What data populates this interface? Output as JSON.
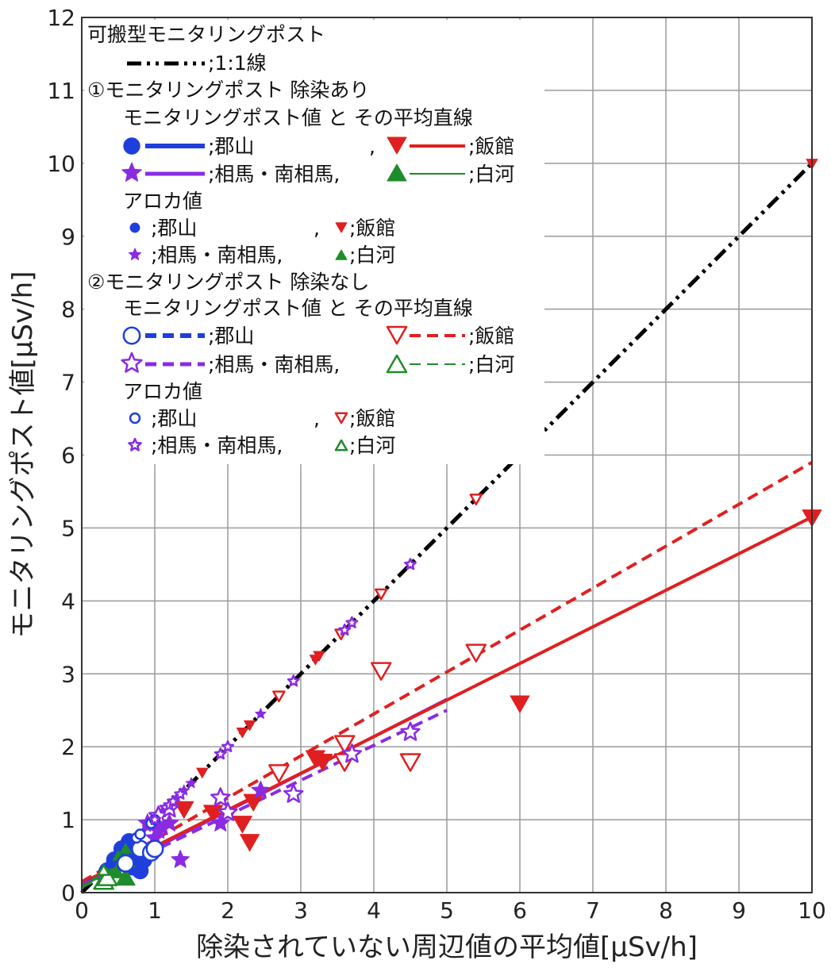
{
  "chart_data": {
    "type": "scatter",
    "title": "",
    "xlabel": "除染されていない周辺値の平均値[μSv/h]",
    "ylabel": "モニタリングポスト値[μSv/h]",
    "xlim": [
      0,
      10
    ],
    "ylim": [
      0,
      12
    ],
    "x_ticks": [
      "0",
      "1",
      "2",
      "3",
      "4",
      "5",
      "6",
      "7",
      "8",
      "9",
      "10"
    ],
    "y_ticks": [
      "0",
      "1",
      "2",
      "3",
      "4",
      "5",
      "6",
      "7",
      "8",
      "9",
      "10",
      "11",
      "12"
    ],
    "grid": true,
    "legend_position": "top-left",
    "colors": {
      "koriyama": "#1f3fdc",
      "iitate": "#e02020",
      "soma": "#8a2be2",
      "shirakawa": "#1e8c2a",
      "reference": "#000000"
    },
    "legend": {
      "header": "可搬型モニタリングポスト",
      "ref_line": ";1:1線",
      "section1": "①モニタリングポスト 除染あり",
      "section2": "②モニタリングポスト 除染なし",
      "mp_title": "モニタリングポスト値 と その平均直線",
      "aloka_title": "アロカ値",
      "koriyama": ";郡山",
      "iitate": ";飯館",
      "soma": ";相馬・南相馬,",
      "shirakawa": ";白河",
      "comma": ","
    },
    "lines": [
      {
        "name": ";1:1線",
        "style": "dashdot",
        "color": "#000000",
        "x": [
          0,
          10
        ],
        "y": [
          0,
          10
        ]
      },
      {
        "name": "郡山",
        "group": "除染あり",
        "style": "solid",
        "color": "#1f3fdc",
        "x": [
          0,
          0.8
        ],
        "y": [
          0.12,
          0.55
        ]
      },
      {
        "name": "相馬・南相馬",
        "group": "除染あり",
        "style": "solid",
        "color": "#8a2be2",
        "x": [
          0,
          5
        ],
        "y": [
          0.1,
          2.65
        ]
      },
      {
        "name": "飯館",
        "group": "除染あり",
        "style": "solid",
        "color": "#e02020",
        "x": [
          0,
          10
        ],
        "y": [
          0.13,
          5.15
        ]
      },
      {
        "name": "白河",
        "group": "除染あり",
        "style": "solid",
        "color": "#1e8c2a",
        "x": [
          0,
          0.7
        ],
        "y": [
          0.1,
          0.45
        ]
      },
      {
        "name": "郡山",
        "group": "除染なし",
        "style": "dashed",
        "color": "#1f3fdc",
        "x": [
          0,
          1.0
        ],
        "y": [
          0.15,
          0.62
        ]
      },
      {
        "name": "相馬・南相馬",
        "group": "除染なし",
        "style": "dashed",
        "color": "#8a2be2",
        "x": [
          0,
          5
        ],
        "y": [
          0.1,
          2.5
        ]
      },
      {
        "name": "飯館",
        "group": "除染なし",
        "style": "dashed",
        "color": "#e02020",
        "x": [
          0,
          10
        ],
        "y": [
          0.15,
          5.9
        ]
      },
      {
        "name": "白河",
        "group": "除染なし",
        "style": "dashed",
        "color": "#1e8c2a",
        "x": [
          0,
          0.7
        ],
        "y": [
          0.08,
          0.4
        ]
      }
    ],
    "series": [
      {
        "name": "郡山",
        "group": "除染あり",
        "kind": "mp",
        "marker": "circle",
        "filled": true,
        "color": "#1f3fdc",
        "points": [
          [
            0.35,
            0.3
          ],
          [
            0.45,
            0.45
          ],
          [
            0.5,
            0.4
          ],
          [
            0.55,
            0.6
          ],
          [
            0.6,
            0.45
          ],
          [
            0.65,
            0.7
          ],
          [
            0.7,
            0.35
          ],
          [
            0.75,
            0.55
          ],
          [
            0.8,
            0.3
          ],
          [
            0.85,
            0.45
          ]
        ]
      },
      {
        "name": "飯館",
        "group": "除染あり",
        "kind": "mp",
        "marker": "triangle-down",
        "filled": true,
        "color": "#e02020",
        "points": [
          [
            1.4,
            1.15
          ],
          [
            1.8,
            1.1
          ],
          [
            2.2,
            0.95
          ],
          [
            2.3,
            0.7
          ],
          [
            2.35,
            1.25
          ],
          [
            3.2,
            1.85
          ],
          [
            3.3,
            1.8
          ],
          [
            6.0,
            2.6
          ],
          [
            10.0,
            5.15
          ]
        ]
      },
      {
        "name": "相馬・南相馬",
        "group": "除染あり",
        "kind": "mp",
        "marker": "star",
        "filled": true,
        "color": "#8a2be2",
        "points": [
          [
            0.9,
            0.95
          ],
          [
            1.0,
            0.75
          ],
          [
            1.05,
            0.85
          ],
          [
            1.1,
            0.9
          ],
          [
            1.2,
            0.95
          ],
          [
            1.35,
            0.45
          ],
          [
            1.9,
            0.95
          ],
          [
            2.45,
            1.4
          ]
        ]
      },
      {
        "name": "白河",
        "group": "除染あり",
        "kind": "mp",
        "marker": "triangle-up",
        "filled": true,
        "color": "#1e8c2a",
        "points": [
          [
            0.3,
            0.15
          ],
          [
            0.45,
            0.3
          ],
          [
            0.6,
            0.2
          ],
          [
            0.6,
            0.45
          ]
        ]
      },
      {
        "name": "郡山",
        "group": "除染あり",
        "kind": "aloka",
        "marker": "circle",
        "filled": true,
        "color": "#1f3fdc",
        "points": [
          [
            0.3,
            0.3
          ],
          [
            0.4,
            0.4
          ],
          [
            0.5,
            0.5
          ],
          [
            0.6,
            0.6
          ],
          [
            0.7,
            0.7
          ],
          [
            0.75,
            0.75
          ]
        ]
      },
      {
        "name": "飯館",
        "group": "除染あり",
        "kind": "aloka",
        "marker": "triangle-down",
        "filled": true,
        "color": "#e02020",
        "points": [
          [
            1.65,
            1.65
          ],
          [
            2.2,
            2.2
          ],
          [
            2.3,
            2.3
          ],
          [
            3.2,
            3.2
          ],
          [
            3.25,
            3.25
          ],
          [
            6.0,
            6.0
          ],
          [
            10.0,
            10.0
          ]
        ]
      },
      {
        "name": "相馬・南相馬",
        "group": "除染あり",
        "kind": "aloka",
        "marker": "star",
        "filled": true,
        "color": "#8a2be2",
        "points": [
          [
            0.9,
            0.9
          ],
          [
            1.0,
            1.0
          ],
          [
            1.1,
            1.1
          ],
          [
            1.2,
            1.2
          ],
          [
            1.3,
            1.3
          ],
          [
            1.4,
            1.4
          ],
          [
            1.5,
            1.5
          ],
          [
            2.45,
            2.45
          ]
        ]
      },
      {
        "name": "白河",
        "group": "除染あり",
        "kind": "aloka",
        "marker": "triangle-up",
        "filled": true,
        "color": "#1e8c2a",
        "points": [
          [
            0.5,
            0.5
          ],
          [
            0.6,
            0.6
          ]
        ]
      },
      {
        "name": "郡山",
        "group": "除染なし",
        "kind": "mp",
        "marker": "circle",
        "filled": false,
        "color": "#1f3fdc",
        "points": [
          [
            0.6,
            0.4
          ],
          [
            0.8,
            0.6
          ],
          [
            0.95,
            0.55
          ],
          [
            1.0,
            0.6
          ]
        ]
      },
      {
        "name": "飯館",
        "group": "除染なし",
        "kind": "mp",
        "marker": "triangle-down",
        "filled": false,
        "color": "#e02020",
        "points": [
          [
            2.7,
            1.65
          ],
          [
            3.6,
            1.8
          ],
          [
            3.6,
            2.05
          ],
          [
            4.1,
            3.05
          ],
          [
            4.5,
            1.8
          ],
          [
            5.4,
            3.3
          ]
        ]
      },
      {
        "name": "相馬・南相馬",
        "group": "除染なし",
        "kind": "mp",
        "marker": "star",
        "filled": false,
        "color": "#8a2be2",
        "points": [
          [
            1.05,
            1.05
          ],
          [
            1.2,
            1.15
          ],
          [
            1.9,
            1.3
          ],
          [
            2.0,
            1.1
          ],
          [
            2.9,
            1.35
          ],
          [
            3.7,
            1.9
          ],
          [
            4.5,
            2.2
          ]
        ]
      },
      {
        "name": "白河",
        "group": "除染なし",
        "kind": "mp",
        "marker": "triangle-up",
        "filled": false,
        "color": "#1e8c2a",
        "points": [
          [
            0.3,
            0.15
          ],
          [
            0.35,
            0.2
          ]
        ]
      },
      {
        "name": "郡山",
        "group": "除染なし",
        "kind": "aloka",
        "marker": "circle",
        "filled": false,
        "color": "#1f3fdc",
        "points": [
          [
            0.75,
            0.75
          ],
          [
            0.8,
            0.8
          ],
          [
            0.95,
            0.95
          ],
          [
            1.0,
            1.0
          ]
        ]
      },
      {
        "name": "飯館",
        "group": "除染なし",
        "kind": "aloka",
        "marker": "triangle-down",
        "filled": false,
        "color": "#e02020",
        "points": [
          [
            2.7,
            2.7
          ],
          [
            3.55,
            3.55
          ],
          [
            4.1,
            4.1
          ],
          [
            5.4,
            5.4
          ]
        ]
      },
      {
        "name": "相馬・南相馬",
        "group": "除染なし",
        "kind": "aloka",
        "marker": "star",
        "filled": false,
        "color": "#8a2be2",
        "points": [
          [
            1.0,
            1.0
          ],
          [
            1.2,
            1.2
          ],
          [
            1.25,
            1.25
          ],
          [
            1.35,
            1.35
          ],
          [
            1.9,
            1.9
          ],
          [
            2.0,
            2.0
          ],
          [
            2.9,
            2.9
          ],
          [
            3.6,
            3.6
          ],
          [
            3.7,
            3.7
          ],
          [
            4.5,
            4.5
          ]
        ]
      },
      {
        "name": "白河",
        "group": "除染なし",
        "kind": "aloka",
        "marker": "triangle-up",
        "filled": false,
        "color": "#1e8c2a",
        "points": [
          [
            0.3,
            0.3
          ]
        ]
      }
    ]
  }
}
